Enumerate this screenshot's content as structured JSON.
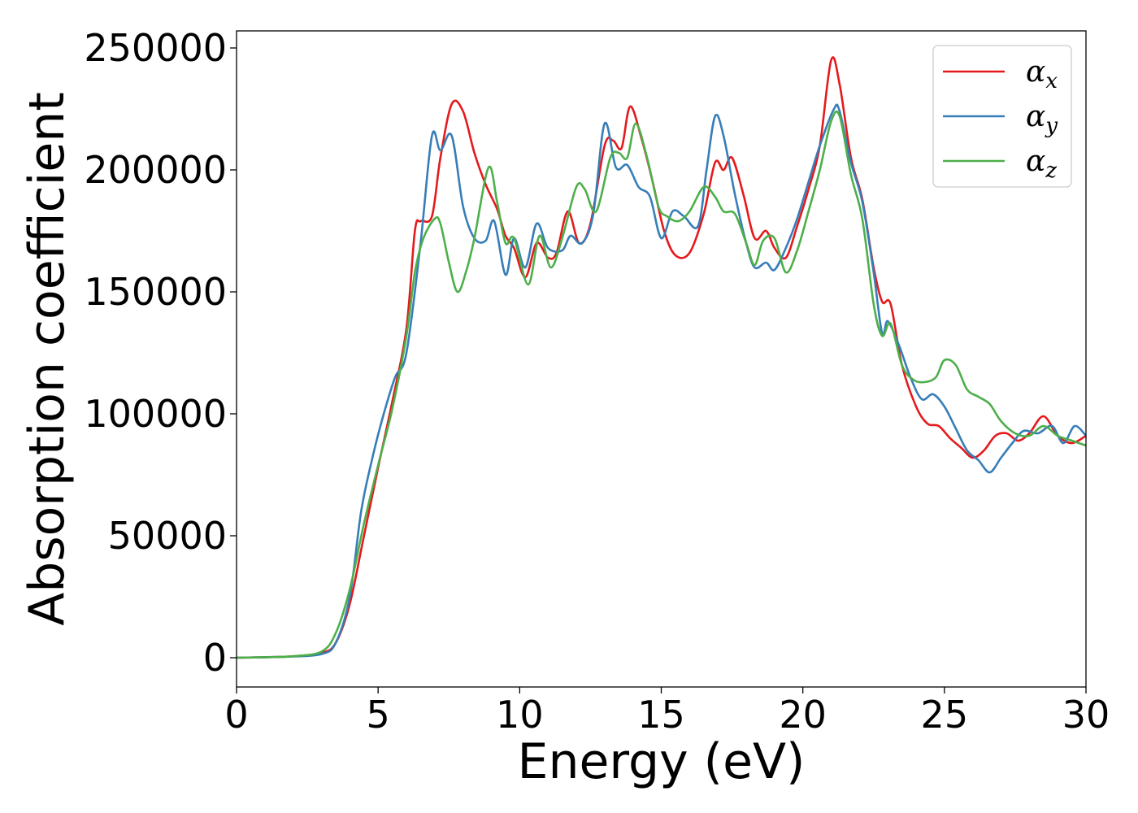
{
  "chart_data": {
    "type": "line",
    "title": "",
    "xlabel": "Energy (eV)",
    "ylabel": "Absorption coefficient",
    "xlim": [
      0,
      30
    ],
    "ylim": [
      -12000,
      257000
    ],
    "xticks": [
      0,
      5,
      10,
      15,
      20,
      25,
      30
    ],
    "yticks": [
      0,
      50000,
      100000,
      150000,
      200000,
      250000
    ],
    "grid": false,
    "legend_position": "top-right",
    "series": [
      {
        "name": "α_x",
        "legend_base": "α",
        "legend_sub": "x",
        "color": "#e41a1c",
        "points": [
          [
            0,
            0
          ],
          [
            1,
            200
          ],
          [
            2,
            600
          ],
          [
            3,
            2000
          ],
          [
            3.5,
            6000
          ],
          [
            4,
            22000
          ],
          [
            4.5,
            50000
          ],
          [
            5,
            78000
          ],
          [
            5.5,
            105000
          ],
          [
            6,
            135000
          ],
          [
            6.3,
            175000
          ],
          [
            6.5,
            179000
          ],
          [
            6.9,
            181000
          ],
          [
            7.2,
            205000
          ],
          [
            7.6,
            227000
          ],
          [
            8,
            224000
          ],
          [
            8.4,
            207000
          ],
          [
            8.8,
            194000
          ],
          [
            9.2,
            184000
          ],
          [
            9.5,
            173000
          ],
          [
            9.8,
            168000
          ],
          [
            10.2,
            156000
          ],
          [
            10.6,
            170000
          ],
          [
            11,
            164000
          ],
          [
            11.3,
            166000
          ],
          [
            11.7,
            183000
          ],
          [
            12.1,
            170000
          ],
          [
            12.5,
            178000
          ],
          [
            13,
            210000
          ],
          [
            13.3,
            212000
          ],
          [
            13.6,
            209000
          ],
          [
            13.9,
            226000
          ],
          [
            14.3,
            213000
          ],
          [
            14.7,
            195000
          ],
          [
            15.1,
            175000
          ],
          [
            15.5,
            165000
          ],
          [
            16,
            166000
          ],
          [
            16.5,
            182000
          ],
          [
            16.9,
            203000
          ],
          [
            17.2,
            200000
          ],
          [
            17.5,
            205000
          ],
          [
            17.9,
            190000
          ],
          [
            18.3,
            172000
          ],
          [
            18.7,
            175000
          ],
          [
            19,
            168000
          ],
          [
            19.4,
            164000
          ],
          [
            19.8,
            177000
          ],
          [
            20.2,
            192000
          ],
          [
            20.6,
            210000
          ],
          [
            21,
            245000
          ],
          [
            21.3,
            235000
          ],
          [
            21.7,
            205000
          ],
          [
            22.1,
            188000
          ],
          [
            22.5,
            160000
          ],
          [
            22.8,
            146000
          ],
          [
            23.1,
            145000
          ],
          [
            23.5,
            120000
          ],
          [
            24,
            103000
          ],
          [
            24.4,
            96000
          ],
          [
            24.8,
            95000
          ],
          [
            25.2,
            90000
          ],
          [
            25.6,
            86000
          ],
          [
            26,
            82000
          ],
          [
            26.4,
            85000
          ],
          [
            26.8,
            91000
          ],
          [
            27.2,
            92000
          ],
          [
            27.6,
            89000
          ],
          [
            28,
            92000
          ],
          [
            28.5,
            99000
          ],
          [
            29,
            91000
          ],
          [
            29.5,
            88000
          ],
          [
            30,
            91000
          ]
        ]
      },
      {
        "name": "α_y",
        "legend_base": "α",
        "legend_sub": "y",
        "color": "#377eb8",
        "points": [
          [
            0,
            0
          ],
          [
            1,
            200
          ],
          [
            2,
            500
          ],
          [
            3,
            1500
          ],
          [
            3.5,
            6000
          ],
          [
            4,
            25000
          ],
          [
            4.4,
            60000
          ],
          [
            4.8,
            82000
          ],
          [
            5.2,
            100000
          ],
          [
            5.6,
            115000
          ],
          [
            6,
            125000
          ],
          [
            6.5,
            170000
          ],
          [
            6.9,
            214000
          ],
          [
            7.2,
            208000
          ],
          [
            7.6,
            214000
          ],
          [
            8,
            185000
          ],
          [
            8.4,
            172000
          ],
          [
            8.8,
            171000
          ],
          [
            9.1,
            179000
          ],
          [
            9.5,
            157000
          ],
          [
            9.8,
            172000
          ],
          [
            10.2,
            160000
          ],
          [
            10.6,
            178000
          ],
          [
            11,
            168000
          ],
          [
            11.5,
            167000
          ],
          [
            11.8,
            173000
          ],
          [
            12.2,
            170000
          ],
          [
            12.6,
            182000
          ],
          [
            13,
            219000
          ],
          [
            13.4,
            201000
          ],
          [
            13.8,
            202000
          ],
          [
            14.2,
            193000
          ],
          [
            14.6,
            189000
          ],
          [
            15,
            172000
          ],
          [
            15.4,
            183000
          ],
          [
            15.8,
            181000
          ],
          [
            16.3,
            177000
          ],
          [
            16.6,
            200000
          ],
          [
            16.9,
            222000
          ],
          [
            17.2,
            214000
          ],
          [
            17.6,
            190000
          ],
          [
            18,
            170000
          ],
          [
            18.3,
            160000
          ],
          [
            18.7,
            162000
          ],
          [
            19,
            159000
          ],
          [
            19.4,
            168000
          ],
          [
            19.8,
            180000
          ],
          [
            20.2,
            195000
          ],
          [
            20.6,
            210000
          ],
          [
            21.1,
            225000
          ],
          [
            21.3,
            224000
          ],
          [
            21.7,
            203000
          ],
          [
            22.1,
            187000
          ],
          [
            22.5,
            158000
          ],
          [
            22.8,
            133000
          ],
          [
            23,
            138000
          ],
          [
            23.4,
            128000
          ],
          [
            23.8,
            115000
          ],
          [
            24.2,
            106000
          ],
          [
            24.6,
            108000
          ],
          [
            25,
            103000
          ],
          [
            25.4,
            94000
          ],
          [
            25.8,
            85000
          ],
          [
            26.2,
            81000
          ],
          [
            26.6,
            76000
          ],
          [
            27,
            82000
          ],
          [
            27.4,
            88000
          ],
          [
            27.8,
            93000
          ],
          [
            28.3,
            92000
          ],
          [
            28.8,
            95000
          ],
          [
            29.2,
            88000
          ],
          [
            29.6,
            95000
          ],
          [
            30,
            91000
          ]
        ]
      },
      {
        "name": "α_z",
        "legend_base": "α",
        "legend_sub": "z",
        "color": "#4daf4a",
        "points": [
          [
            0,
            0
          ],
          [
            1,
            200
          ],
          [
            2,
            600
          ],
          [
            3,
            2500
          ],
          [
            3.5,
            10000
          ],
          [
            4,
            28000
          ],
          [
            4.5,
            55000
          ],
          [
            5,
            79000
          ],
          [
            5.5,
            102000
          ],
          [
            6,
            132000
          ],
          [
            6.3,
            158000
          ],
          [
            6.6,
            172000
          ],
          [
            7,
            180000
          ],
          [
            7.2,
            178000
          ],
          [
            7.5,
            162000
          ],
          [
            7.8,
            150000
          ],
          [
            8.1,
            158000
          ],
          [
            8.4,
            172000
          ],
          [
            8.9,
            201000
          ],
          [
            9.2,
            187000
          ],
          [
            9.5,
            170000
          ],
          [
            9.8,
            172000
          ],
          [
            10.3,
            153000
          ],
          [
            10.7,
            173000
          ],
          [
            11.1,
            160000
          ],
          [
            11.5,
            172000
          ],
          [
            12,
            193000
          ],
          [
            12.3,
            192000
          ],
          [
            12.7,
            183000
          ],
          [
            13.2,
            205000
          ],
          [
            13.5,
            207000
          ],
          [
            13.8,
            205000
          ],
          [
            14.1,
            219000
          ],
          [
            14.5,
            205000
          ],
          [
            14.9,
            185000
          ],
          [
            15.2,
            181000
          ],
          [
            15.6,
            179000
          ],
          [
            16,
            183000
          ],
          [
            16.5,
            193000
          ],
          [
            16.9,
            189000
          ],
          [
            17.2,
            183000
          ],
          [
            17.6,
            182000
          ],
          [
            18,
            170000
          ],
          [
            18.3,
            161000
          ],
          [
            18.6,
            171000
          ],
          [
            19,
            172000
          ],
          [
            19.4,
            158000
          ],
          [
            19.8,
            167000
          ],
          [
            20.2,
            183000
          ],
          [
            20.6,
            200000
          ],
          [
            21,
            220000
          ],
          [
            21.3,
            222000
          ],
          [
            21.7,
            198000
          ],
          [
            22.1,
            180000
          ],
          [
            22.5,
            145000
          ],
          [
            22.8,
            132000
          ],
          [
            23.1,
            137000
          ],
          [
            23.5,
            120000
          ],
          [
            23.9,
            114000
          ],
          [
            24.3,
            113000
          ],
          [
            24.7,
            115000
          ],
          [
            25,
            122000
          ],
          [
            25.4,
            120000
          ],
          [
            25.8,
            110000
          ],
          [
            26.2,
            107000
          ],
          [
            26.6,
            104000
          ],
          [
            27,
            97000
          ],
          [
            27.5,
            92000
          ],
          [
            28,
            91000
          ],
          [
            28.5,
            95000
          ],
          [
            29,
            91000
          ],
          [
            29.5,
            89000
          ],
          [
            30,
            87000
          ]
        ]
      }
    ]
  }
}
